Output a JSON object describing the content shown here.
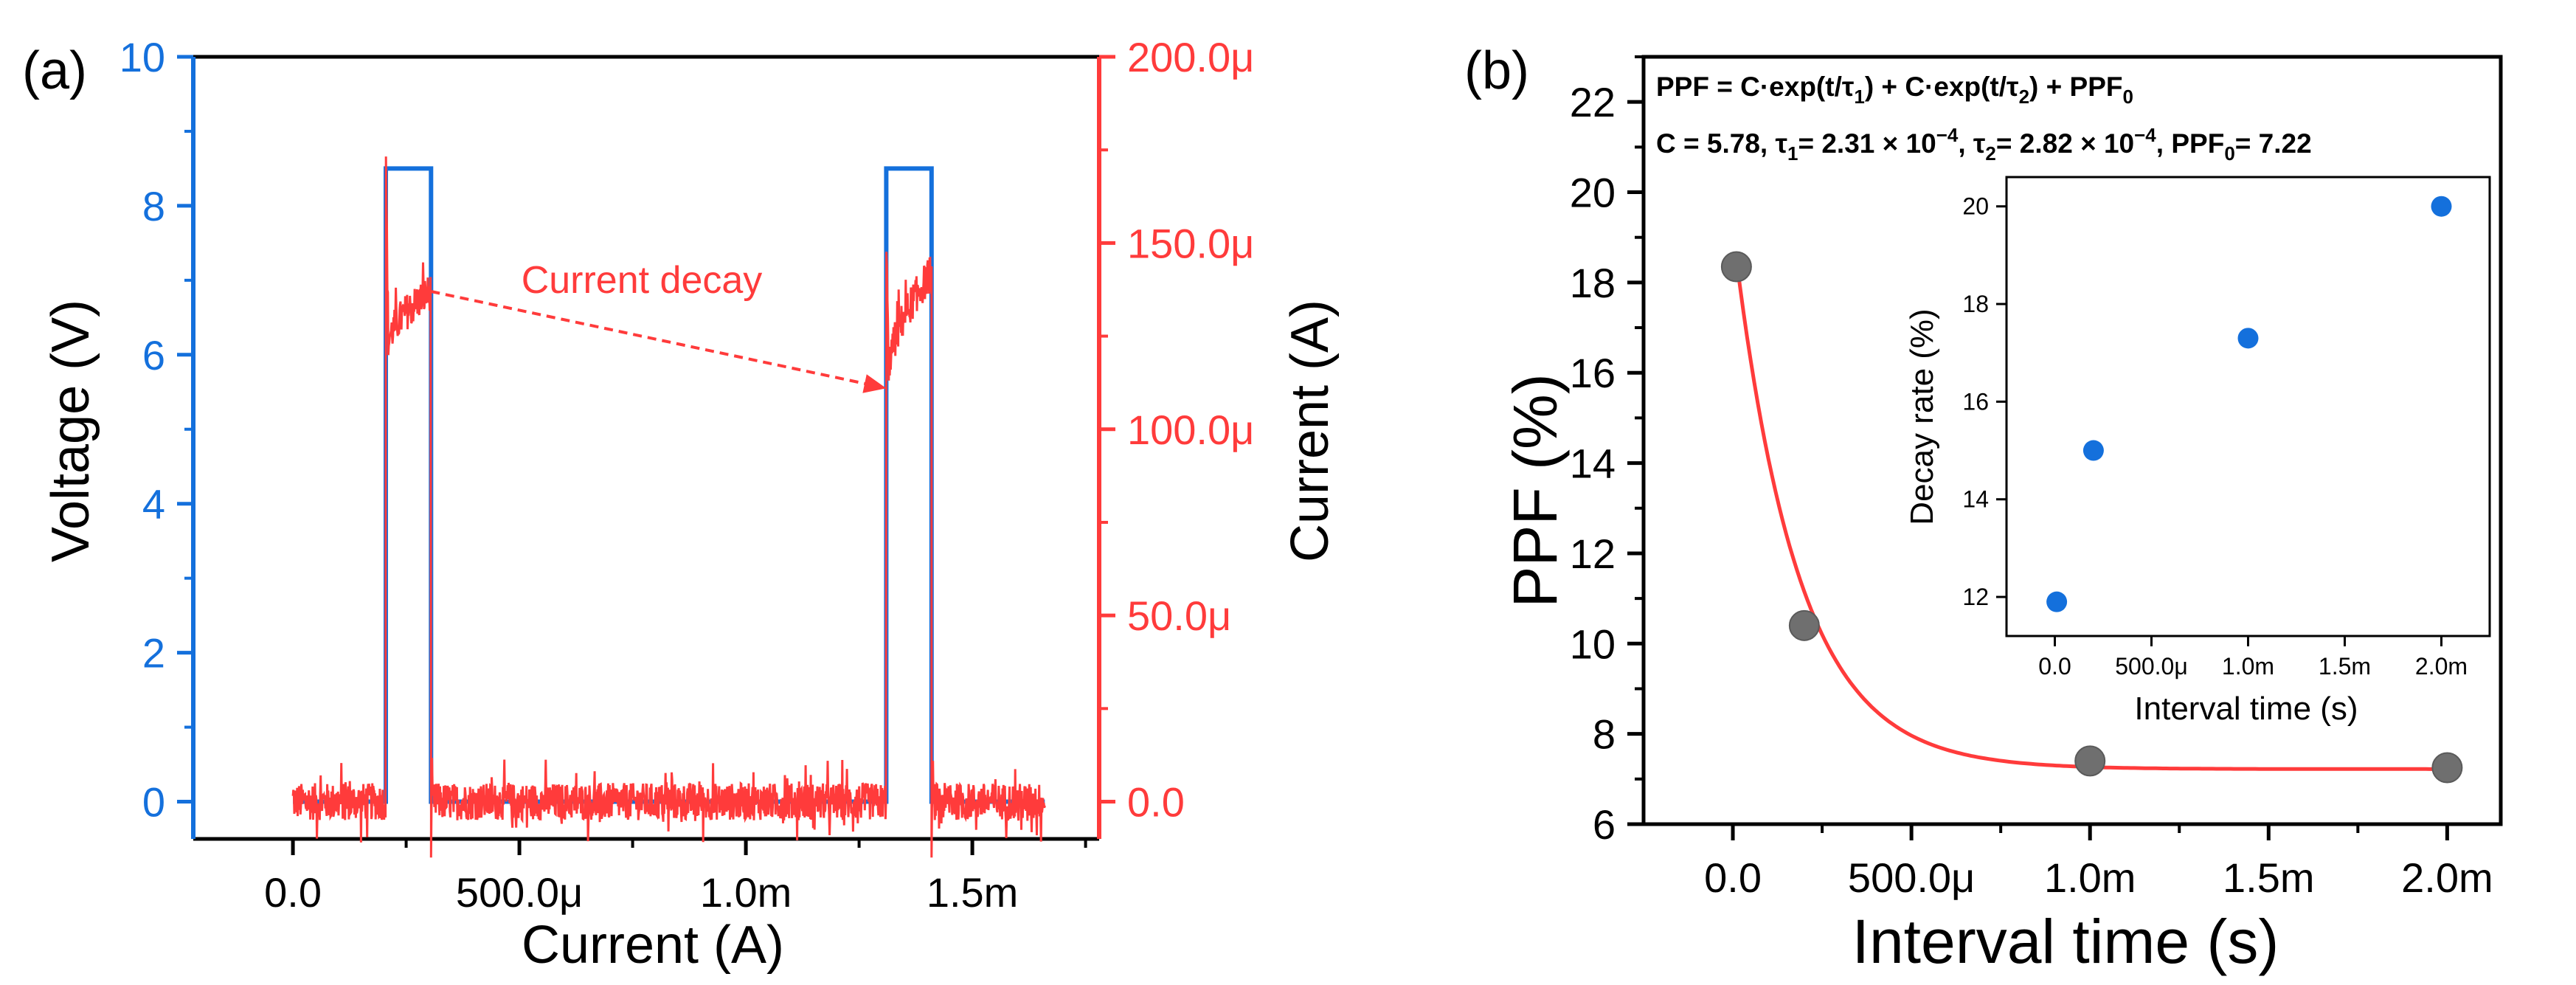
{
  "colors": {
    "voltage": "#1470dc",
    "current": "#ff3b3b",
    "marker_gray": "#6f6f6f",
    "marker_blue": "#1470dc",
    "axis": "#000000"
  },
  "chart_data": [
    {
      "panel": "a",
      "panel_label": "(a)",
      "type": "line",
      "title": "",
      "xlabel": "Current (A)",
      "ylabel_left": "Voltage (V)",
      "ylabel_right": "Current (A)",
      "xlim": [
        -0.00022,
        0.00178
      ],
      "ylim_left": [
        -0.5,
        10
      ],
      "ylim_right": [
        -10,
        200
      ],
      "x_ticks": [
        0,
        0.0005,
        0.001,
        0.0015
      ],
      "x_tick_labels": [
        "0.0",
        "500.0μ",
        "1.0m",
        "1.5m"
      ],
      "y_left_ticks": [
        0,
        2,
        4,
        6,
        8,
        10
      ],
      "y_left_tick_labels": [
        "0",
        "2",
        "4",
        "6",
        "8",
        "10"
      ],
      "y_right_ticks": [
        0,
        50,
        100,
        150,
        200
      ],
      "y_right_tick_labels": [
        "0.0",
        "50.0μ",
        "100.0μ",
        "150.0μ",
        "200.0μ"
      ],
      "series": [
        {
          "name": "Voltage",
          "axis": "left",
          "x": [
            0,
            0.000205,
            0.000205,
            0.000305,
            0.000305,
            0.00131,
            0.00131,
            0.00141,
            0.00141,
            0.00166
          ],
          "y": [
            0,
            0,
            8.5,
            8.5,
            0,
            0,
            8.5,
            8.5,
            0,
            0
          ]
        },
        {
          "name": "Current",
          "axis": "right",
          "noise_amplitude_uA": 5,
          "pulses": [
            {
              "start": 0.000205,
              "end": 0.000305,
              "spike_uA": 173,
              "start_uA": 120,
              "end_uA": 137,
              "undershoot_uA": -15
            },
            {
              "start": 0.00131,
              "end": 0.00141,
              "spike_uA": 150,
              "start_uA": 110,
              "end_uA": 142,
              "undershoot_uA": -15
            }
          ],
          "x_range": [
            0,
            0.00166
          ]
        }
      ],
      "annotation": {
        "text": "Current decay",
        "from": {
          "x": 0.000305,
          "y_uA": 137
        },
        "to": {
          "x": 0.00131,
          "y_uA": 111
        }
      }
    },
    {
      "panel": "b",
      "panel_label": "(b)",
      "type": "scatter",
      "xlabel": "Interval time (s)",
      "ylabel": "PPF (%)",
      "xlim": [
        -0.00025,
        0.00215
      ],
      "ylim": [
        6,
        23
      ],
      "x_ticks": [
        0,
        0.0005,
        0.001,
        0.0015,
        0.002
      ],
      "x_tick_labels": [
        "0.0",
        "500.0μ",
        "1.0m",
        "1.5m",
        "2.0m"
      ],
      "y_ticks": [
        6,
        8,
        10,
        12,
        14,
        16,
        18,
        20,
        22
      ],
      "y_tick_labels": [
        "6",
        "8",
        "10",
        "12",
        "14",
        "16",
        "18",
        "20",
        "22"
      ],
      "points": {
        "x": [
          1e-05,
          0.0002,
          0.001,
          0.002
        ],
        "y": [
          18.35,
          10.4,
          7.4,
          7.25
        ]
      },
      "fit": {
        "name": "PPF fit",
        "A": 11.3,
        "tau": 0.00018,
        "baseline": 7.22,
        "x_range": [
          1e-05,
          0.002
        ]
      },
      "equation": {
        "line1": {
          "lhs": "PPF = C·exp(t/τ",
          "sub1": "1",
          "mid": ") + C·exp(t/τ",
          "sub2": "2",
          "end": ") + PPF",
          "sub3": "0"
        },
        "line2": {
          "c": "C = 5.78, ",
          "t1_sym": "τ",
          "t1_sub": "1",
          "t1_val": "= 2.31 × 10",
          "t1_exp": "−4",
          "t2_sep": ", ",
          "t2_sym": "τ",
          "t2_sub": "2",
          "t2_val": "= 2.82 × 10",
          "t2_exp": "−4",
          "ppf_label": ",  PPF",
          "ppf_sub": "0",
          "ppf_val": "= 7.22"
        }
      },
      "inset": {
        "type": "scatter",
        "xlabel": "Interval time (s)",
        "ylabel": "Decay rate (%)",
        "xlim": [
          -0.00025,
          0.00225
        ],
        "ylim": [
          11.2,
          20.6
        ],
        "x_ticks": [
          0,
          0.0005,
          0.001,
          0.0015,
          0.002
        ],
        "x_tick_labels": [
          "0.0",
          "500.0μ",
          "1.0m",
          "1.5m",
          "2.0m"
        ],
        "y_ticks": [
          12,
          14,
          16,
          18,
          20
        ],
        "y_tick_labels": [
          "12",
          "14",
          "16",
          "18",
          "20"
        ],
        "points": {
          "x": [
            1e-05,
            0.0002,
            0.001,
            0.002
          ],
          "y": [
            11.9,
            15.0,
            17.3,
            20.0
          ]
        }
      }
    }
  ]
}
